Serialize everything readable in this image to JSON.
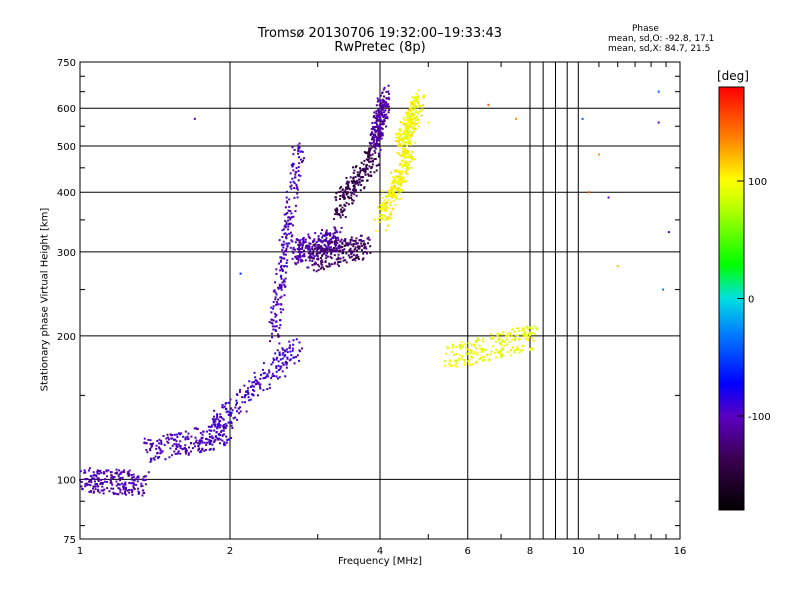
{
  "chart_data": {
    "type": "scatter",
    "title": "Tromsø 20130706 19:32:00–19:33:43",
    "subtitle": "RwPretec (8p)",
    "xlabel": "Frequency [MHz]",
    "ylabel": "Stationary phase Virtual Height [km]",
    "x_scale": "log",
    "y_scale": "log",
    "xlim": [
      1,
      16
    ],
    "ylim": [
      75,
      750
    ],
    "x_ticks": [
      1,
      2,
      4,
      6,
      8,
      10,
      16
    ],
    "x_tick_labels": [
      "1",
      "2",
      "4",
      "6",
      "8",
      "10",
      "16"
    ],
    "y_ticks": [
      75,
      100,
      200,
      300,
      400,
      500,
      600,
      750
    ],
    "y_tick_labels": [
      "75",
      "100",
      "200",
      "300",
      "400",
      "500",
      "600",
      "750"
    ],
    "grid": true,
    "stats": {
      "heading": "Phase",
      "line_o": "mean, sd,O: -92.8, 17.1",
      "line_x": "mean, sd,X: 84.7, 21.5"
    },
    "colorbar": {
      "label": "[deg]",
      "range": [
        -180,
        180
      ],
      "ticks": [
        100,
        0,
        -100
      ],
      "tick_labels": [
        "100",
        "0",
        "-100"
      ]
    },
    "traces": [
      {
        "freq_range": [
          1.0,
          1.35
        ],
        "height": [
          100,
          98
        ],
        "phase": -105
      },
      {
        "freq_range": [
          1.35,
          2.0
        ],
        "height": [
          115,
          125
        ],
        "phase": -100
      },
      {
        "freq_range": [
          1.8,
          2.75
        ],
        "height": [
          125,
          190
        ],
        "phase": -95
      },
      {
        "freq_range": [
          2.45,
          2.75
        ],
        "height": [
          200,
          500
        ],
        "phase": -100
      },
      {
        "freq_range": [
          2.7,
          3.3
        ],
        "height": [
          300,
          320
        ],
        "phase": -105
      },
      {
        "freq_range": [
          2.9,
          3.8
        ],
        "height": [
          290,
          310
        ],
        "phase": -130
      },
      {
        "freq_range": [
          3.3,
          3.9
        ],
        "height": [
          370,
          480
        ],
        "phase": -140
      },
      {
        "freq_range": [
          3.9,
          4.1
        ],
        "height": [
          500,
          640
        ],
        "phase": -110
      },
      {
        "freq_range": [
          4.0,
          4.6
        ],
        "height": [
          350,
          480
        ],
        "phase": 100
      },
      {
        "freq_range": [
          4.4,
          4.8
        ],
        "height": [
          500,
          620
        ],
        "phase": 100
      },
      {
        "freq_range": [
          5.5,
          8.2
        ],
        "height": [
          180,
          200
        ],
        "phase": 95
      }
    ],
    "points": [
      {
        "x": 1.7,
        "y": 570,
        "phase": -110
      },
      {
        "x": 2.1,
        "y": 270,
        "phase": -60
      },
      {
        "x": 5.0,
        "y": 560,
        "phase": 100
      },
      {
        "x": 6.6,
        "y": 610,
        "phase": 150
      },
      {
        "x": 7.5,
        "y": 570,
        "phase": 130
      },
      {
        "x": 10.2,
        "y": 570,
        "phase": -40
      },
      {
        "x": 11.0,
        "y": 480,
        "phase": 130
      },
      {
        "x": 11.5,
        "y": 390,
        "phase": -100
      },
      {
        "x": 12.0,
        "y": 280,
        "phase": 120
      },
      {
        "x": 14.5,
        "y": 560,
        "phase": -100
      },
      {
        "x": 14.8,
        "y": 250,
        "phase": -30
      },
      {
        "x": 15.2,
        "y": 330,
        "phase": -110
      },
      {
        "x": 14.5,
        "y": 650,
        "phase": -40
      },
      {
        "x": 10.5,
        "y": 400,
        "phase": 150
      }
    ]
  }
}
